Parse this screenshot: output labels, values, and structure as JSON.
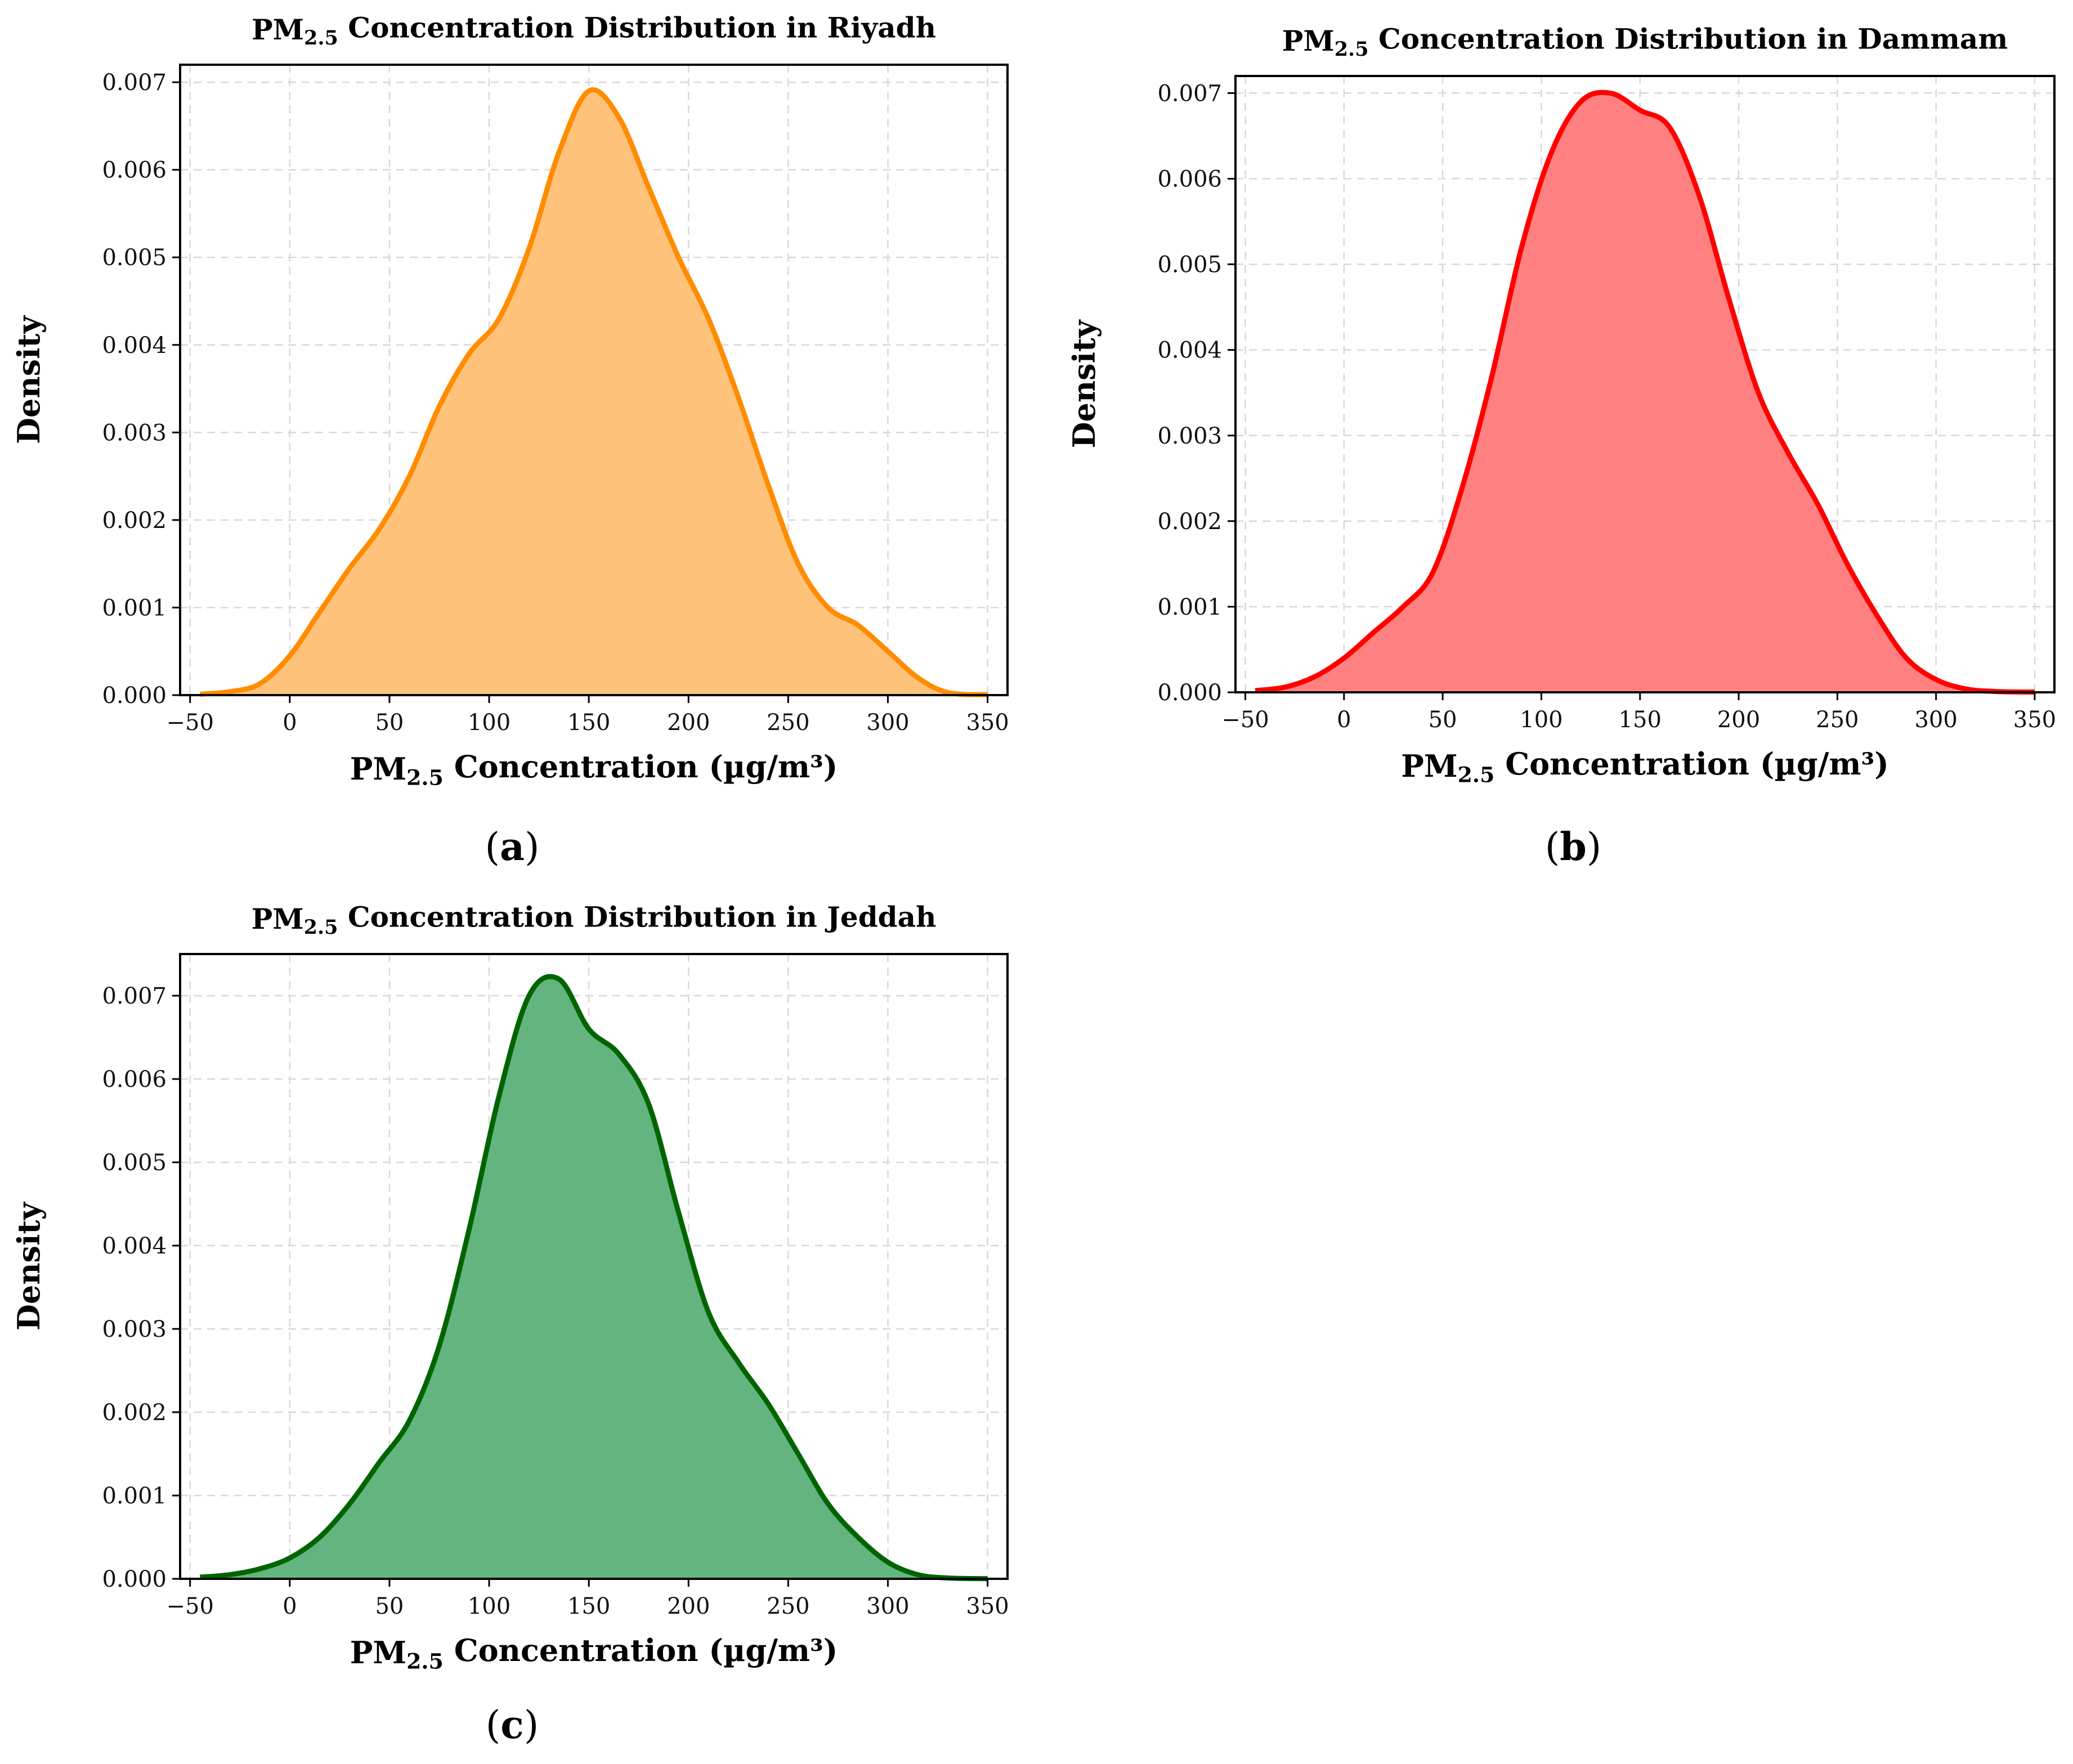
{
  "chart_data": [
    {
      "type": "area",
      "caption_letter": "a",
      "title_prefix": "PM",
      "title_subscript": "2.5",
      "title_suffix": " Concentration Distribution in Riyadh",
      "xlabel_prefix": "PM",
      "xlabel_subscript": "2.5",
      "xlabel_suffix": " Concentration (µg/m³)",
      "ylabel": "Density",
      "xlim": [
        -55,
        360
      ],
      "ylim": [
        0,
        0.0072
      ],
      "x_ticks": [
        "-50",
        "0",
        "50",
        "100",
        "150",
        "200",
        "250",
        "300",
        "350"
      ],
      "y_ticks": [
        "0.000",
        "0.001",
        "0.002",
        "0.003",
        "0.004",
        "0.005",
        "0.006",
        "0.007"
      ],
      "line_color": "#ff8c00",
      "fill_color": "#ffc27a",
      "series": [
        {
          "name": "Riyadh",
          "x": [
            -45,
            -30,
            -15,
            0,
            15,
            30,
            45,
            60,
            75,
            90,
            105,
            120,
            135,
            150,
            165,
            180,
            195,
            210,
            225,
            240,
            255,
            270,
            285,
            300,
            315,
            330,
            350
          ],
          "y": [
            1e-05,
            4e-05,
            0.00013,
            0.00045,
            0.00095,
            0.00145,
            0.0019,
            0.0025,
            0.0033,
            0.0039,
            0.0043,
            0.0051,
            0.0062,
            0.0069,
            0.0066,
            0.0058,
            0.005,
            0.0043,
            0.0034,
            0.0024,
            0.0015,
            0.001,
            0.0008,
            0.0005,
            0.0002,
            3e-05,
            5e-06
          ]
        }
      ]
    },
    {
      "type": "area",
      "caption_letter": "b",
      "title_prefix": "PM",
      "title_subscript": "2.5",
      "title_suffix": " Concentration Distribution in Dammam",
      "xlabel_prefix": "PM",
      "xlabel_subscript": "2.5",
      "xlabel_suffix": " Concentration (µg/m³)",
      "ylabel": "Density",
      "xlim": [
        -55,
        360
      ],
      "ylim": [
        0,
        0.0072
      ],
      "x_ticks": [
        "-50",
        "0",
        "50",
        "100",
        "150",
        "200",
        "250",
        "300",
        "350"
      ],
      "y_ticks": [
        "0.000",
        "0.001",
        "0.002",
        "0.003",
        "0.004",
        "0.005",
        "0.006",
        "0.007"
      ],
      "line_color": "#ff0000",
      "fill_color": "#ff8080",
      "series": [
        {
          "name": "Dammam",
          "x": [
            -45,
            -30,
            -15,
            0,
            15,
            30,
            45,
            60,
            75,
            90,
            105,
            120,
            135,
            150,
            165,
            180,
            195,
            210,
            225,
            240,
            255,
            270,
            285,
            300,
            315,
            330,
            350
          ],
          "y": [
            2e-05,
            6e-05,
            0.00018,
            0.0004,
            0.0007,
            0.001,
            0.0014,
            0.0024,
            0.0037,
            0.0052,
            0.0063,
            0.0069,
            0.007,
            0.0068,
            0.0066,
            0.0058,
            0.0046,
            0.0035,
            0.0028,
            0.0022,
            0.0015,
            0.0009,
            0.0004,
            0.00015,
            4e-05,
            1e-05,
            3e-06
          ]
        }
      ]
    },
    {
      "type": "area",
      "caption_letter": "c",
      "title_prefix": "PM",
      "title_subscript": "2.5",
      "title_suffix": " Concentration Distribution in Jeddah",
      "xlabel_prefix": "PM",
      "xlabel_subscript": "2.5",
      "xlabel_suffix": " Concentration (µg/m³)",
      "ylabel": "Density",
      "xlim": [
        -55,
        360
      ],
      "ylim": [
        0,
        0.0075
      ],
      "x_ticks": [
        "-50",
        "0",
        "50",
        "100",
        "150",
        "200",
        "250",
        "300",
        "350"
      ],
      "y_ticks": [
        "0.000",
        "0.001",
        "0.002",
        "0.003",
        "0.004",
        "0.005",
        "0.006",
        "0.007"
      ],
      "line_color": "#006400",
      "fill_color": "#64b47f",
      "series": [
        {
          "name": "Jeddah",
          "x": [
            -45,
            -30,
            -15,
            0,
            15,
            30,
            45,
            60,
            75,
            90,
            105,
            120,
            135,
            150,
            165,
            180,
            195,
            210,
            225,
            240,
            255,
            270,
            285,
            300,
            315,
            330,
            350
          ],
          "y": [
            2e-05,
            5e-05,
            0.00012,
            0.00025,
            0.0005,
            0.0009,
            0.0014,
            0.0019,
            0.0028,
            0.0042,
            0.0058,
            0.007,
            0.0072,
            0.0066,
            0.0063,
            0.0057,
            0.0044,
            0.0032,
            0.0026,
            0.0021,
            0.0015,
            0.0009,
            0.0005,
            0.0002,
            5e-05,
            1e-05,
            2e-06
          ]
        }
      ]
    }
  ]
}
